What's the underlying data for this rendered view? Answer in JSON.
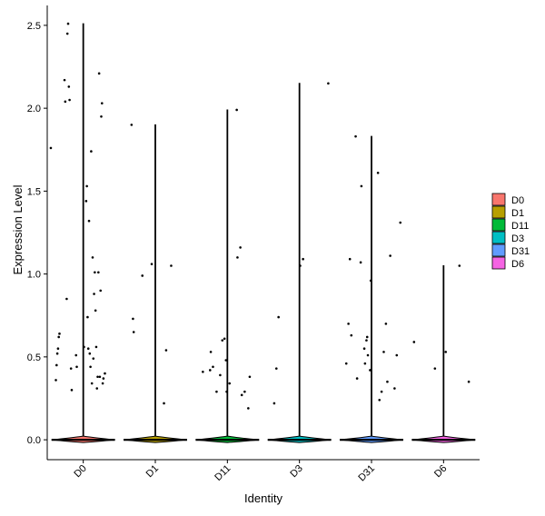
{
  "chart_data": {
    "type": "violin",
    "title": "",
    "xlabel": "Identity",
    "ylabel": "Expression Level",
    "ylim": [
      -0.12,
      2.62
    ],
    "yticks": [
      "0.0",
      "0.5",
      "1.0",
      "1.5",
      "2.0",
      "2.5"
    ],
    "categories": [
      "D0",
      "D1",
      "D11",
      "D3",
      "D31",
      "D6"
    ],
    "legend": {
      "placement": "right",
      "entries": [
        {
          "label": "D0",
          "color": "#F8766D"
        },
        {
          "label": "D1",
          "color": "#B79F00"
        },
        {
          "label": "D11",
          "color": "#00BA38"
        },
        {
          "label": "D3",
          "color": "#00BFC4"
        },
        {
          "label": "D31",
          "color": "#619CFF"
        },
        {
          "label": "D6",
          "color": "#F564E3"
        }
      ]
    },
    "series": [
      {
        "group": "D0",
        "max": 2.51,
        "points": [
          [
            -0.45,
            1.76
          ],
          [
            -0.38,
            0.36
          ],
          [
            -0.37,
            0.45
          ],
          [
            -0.36,
            0.52
          ],
          [
            -0.35,
            0.55
          ],
          [
            -0.34,
            0.62
          ],
          [
            -0.33,
            0.64
          ],
          [
            -0.26,
            2.17
          ],
          [
            -0.25,
            2.04
          ],
          [
            -0.23,
            0.85
          ],
          [
            -0.22,
            2.45
          ],
          [
            -0.21,
            2.51
          ],
          [
            -0.2,
            2.13
          ],
          [
            -0.19,
            2.05
          ],
          [
            -0.17,
            0.43
          ],
          [
            -0.16,
            0.3
          ],
          [
            -0.1,
            0.51
          ],
          [
            -0.09,
            0.44
          ],
          [
            0.05,
            1.53
          ],
          [
            0.06,
            0.74
          ],
          [
            0.07,
            0.55
          ],
          [
            0.08,
            1.32
          ],
          [
            0.09,
            0.52
          ],
          [
            0.1,
            0.44
          ],
          [
            0.11,
            1.74
          ],
          [
            0.12,
            0.34
          ],
          [
            0.13,
            1.1
          ],
          [
            0.14,
            0.49
          ],
          [
            0.15,
            0.88
          ],
          [
            0.16,
            1.01
          ],
          [
            0.17,
            0.78
          ],
          [
            0.18,
            0.56
          ],
          [
            0.19,
            0.31
          ],
          [
            0.2,
            0.38
          ],
          [
            0.21,
            1.01
          ],
          [
            0.22,
            2.21
          ],
          [
            0.23,
            0.38
          ],
          [
            0.24,
            0.9
          ],
          [
            0.25,
            1.95
          ],
          [
            0.26,
            2.03
          ],
          [
            0.27,
            0.34
          ],
          [
            0.28,
            0.37
          ],
          [
            0.3,
            0.4
          ],
          [
            0.04,
            1.44
          ],
          [
            0.01,
            0.56
          ]
        ]
      },
      {
        "group": "D1",
        "max": 1.9,
        "points": [
          [
            -0.33,
            1.9
          ],
          [
            -0.31,
            0.73
          ],
          [
            -0.3,
            0.65
          ],
          [
            -0.18,
            0.99
          ],
          [
            -0.05,
            1.06
          ],
          [
            0.12,
            0.22
          ],
          [
            0.15,
            0.54
          ],
          [
            0.22,
            1.05
          ]
        ]
      },
      {
        "group": "D11",
        "max": 1.99,
        "points": [
          [
            -0.34,
            0.41
          ],
          [
            -0.24,
            0.42
          ],
          [
            -0.23,
            0.53
          ],
          [
            -0.2,
            0.44
          ],
          [
            -0.15,
            0.29
          ],
          [
            -0.1,
            0.39
          ],
          [
            -0.07,
            0.6
          ],
          [
            -0.04,
            0.61
          ],
          [
            -0.02,
            0.48
          ],
          [
            -0.01,
            0.29
          ],
          [
            0.03,
            0.34
          ],
          [
            0.13,
            1.99
          ],
          [
            0.14,
            1.1
          ],
          [
            0.18,
            1.16
          ],
          [
            0.2,
            0.27
          ],
          [
            0.24,
            0.29
          ],
          [
            0.29,
            0.19
          ],
          [
            0.31,
            0.38
          ]
        ]
      },
      {
        "group": "D3",
        "max": 2.15,
        "points": [
          [
            -0.35,
            0.22
          ],
          [
            -0.32,
            0.43
          ],
          [
            -0.29,
            0.74
          ],
          [
            0.01,
            1.05
          ],
          [
            0.05,
            1.09
          ],
          [
            0.4,
            2.15
          ]
        ]
      },
      {
        "group": "D31",
        "max": 1.83,
        "points": [
          [
            -0.35,
            0.46
          ],
          [
            -0.32,
            0.7
          ],
          [
            -0.3,
            1.09
          ],
          [
            -0.28,
            0.63
          ],
          [
            -0.22,
            1.83
          ],
          [
            -0.2,
            0.37
          ],
          [
            -0.15,
            1.07
          ],
          [
            -0.14,
            1.53
          ],
          [
            -0.1,
            0.55
          ],
          [
            -0.09,
            0.46
          ],
          [
            -0.07,
            0.6
          ],
          [
            -0.06,
            0.62
          ],
          [
            -0.05,
            0.51
          ],
          [
            -0.02,
            0.42
          ],
          [
            -0.01,
            0.96
          ],
          [
            0.09,
            1.61
          ],
          [
            0.11,
            0.24
          ],
          [
            0.14,
            0.29
          ],
          [
            0.17,
            0.53
          ],
          [
            0.2,
            0.7
          ],
          [
            0.22,
            0.35
          ],
          [
            0.26,
            1.11
          ],
          [
            0.32,
            0.31
          ],
          [
            0.35,
            0.51
          ],
          [
            0.4,
            1.31
          ]
        ]
      },
      {
        "group": "D6",
        "max": 1.05,
        "points": [
          [
            -0.41,
            0.59
          ],
          [
            -0.12,
            0.43
          ],
          [
            0.03,
            0.53
          ],
          [
            0.22,
            1.05
          ],
          [
            0.35,
            0.35
          ]
        ]
      }
    ]
  }
}
